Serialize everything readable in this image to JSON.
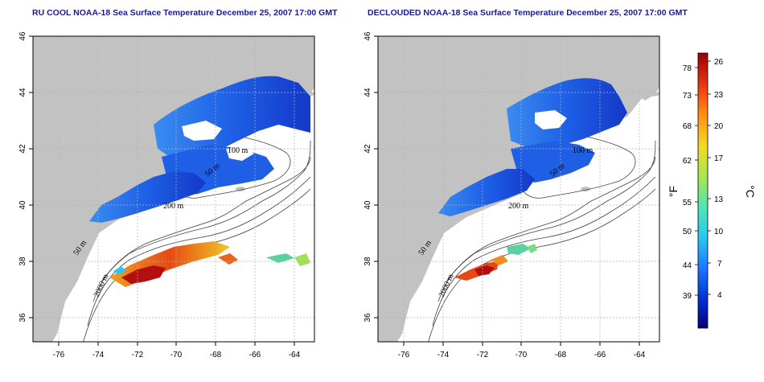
{
  "panels": [
    {
      "title": "RU COOL NOAA-18 Sea Surface Temperature December 25, 2007 17:00 GMT",
      "x_ticks": [
        "-76",
        "-74",
        "-72",
        "-70",
        "-68",
        "-66",
        "-64"
      ],
      "y_ticks": [
        "36",
        "38",
        "40",
        "42",
        "44",
        "46"
      ],
      "contour_labels": [
        "100 m",
        "50 m",
        "200 m",
        "50 m",
        "2000 m"
      ]
    },
    {
      "title": "DECLOUDED NOAA-18 Sea Surface Temperature December 25, 2007 17:00 GMT",
      "x_ticks": [
        "-76",
        "-74",
        "-72",
        "-70",
        "-68",
        "-66",
        "-64"
      ],
      "y_ticks": [
        "36",
        "38",
        "40",
        "42",
        "44",
        "46"
      ],
      "contour_labels": [
        "100 m",
        "50 m",
        "200 m",
        "50 m",
        "2000 m"
      ]
    }
  ],
  "colorbar": {
    "fahrenheit_label": "°F",
    "celsius_label": "°C",
    "fahrenheit_ticks": [
      "78",
      "73",
      "68",
      "62",
      "55",
      "50",
      "44",
      "39"
    ],
    "celsius_ticks": [
      "26",
      "23",
      "20",
      "17",
      "13",
      "10",
      "7",
      "4"
    ],
    "colors": [
      "#08007a",
      "#0033d6",
      "#1e78ff",
      "#28c8f0",
      "#50e6b4",
      "#a8e650",
      "#f0dc28",
      "#ff8c14",
      "#e63214",
      "#9a0000"
    ]
  },
  "colors": {
    "land": "#c2c2c2",
    "ocean": "#ffffff",
    "title": "#1a1a8c",
    "grid": "#b4b4b4"
  }
}
